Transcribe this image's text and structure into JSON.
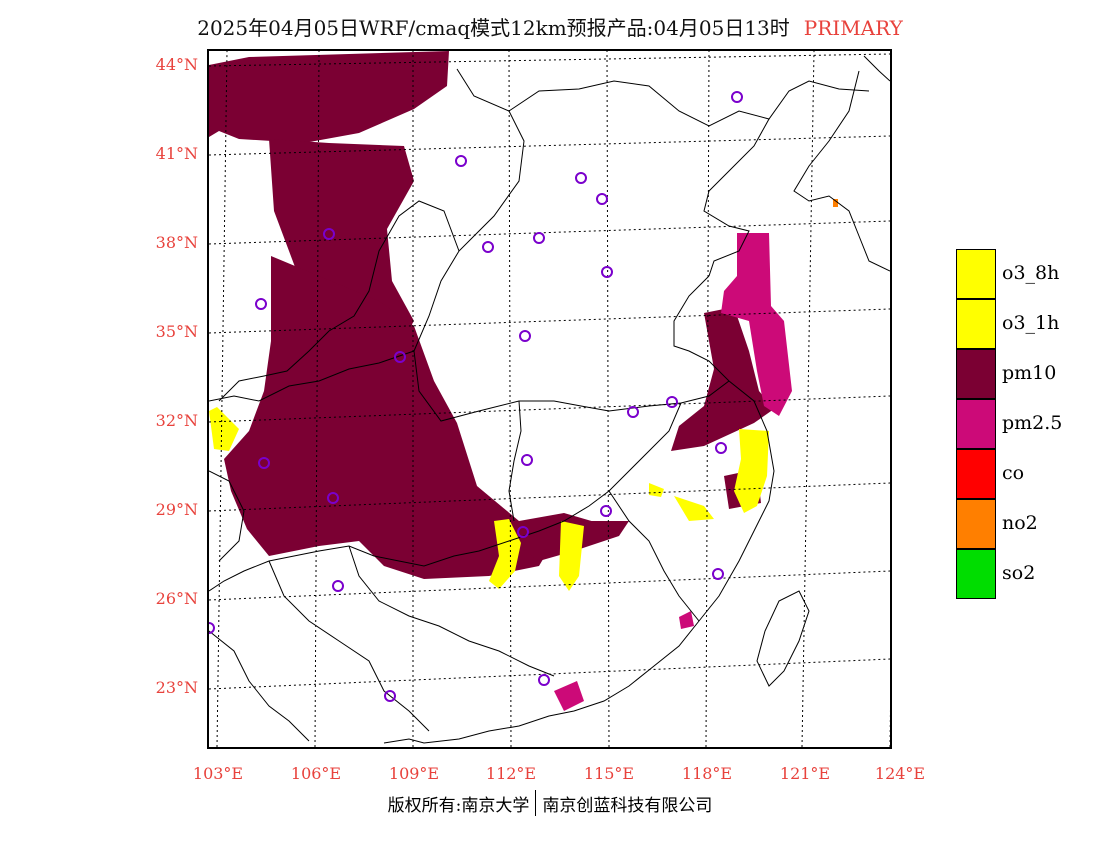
{
  "title": {
    "main": "2025年04月05日WRF/cmaq模式12km预报产品:04月05日13时",
    "tag": "PRIMARY",
    "tag_color": "#e8423c"
  },
  "lat_labels": [
    "44°N",
    "41°N",
    "38°N",
    "35°N",
    "32°N",
    "29°N",
    "26°N",
    "23°N"
  ],
  "lon_labels": [
    "103°E",
    "106°E",
    "109°E",
    "112°E",
    "115°E",
    "118°E",
    "121°E",
    "124°E"
  ],
  "legend": [
    {
      "label": "o3_8h",
      "color": "#ffff00"
    },
    {
      "label": "o3_1h",
      "color": "#ffff00"
    },
    {
      "label": "pm10",
      "color": "#7b0033"
    },
    {
      "label": "pm2.5",
      "color": "#cc0a78"
    },
    {
      "label": "co",
      "color": "#ff0000"
    },
    {
      "label": "no2",
      "color": "#ff7f00"
    },
    {
      "label": "so2",
      "color": "#00dd00"
    }
  ],
  "footer": {
    "left": "版权所有:南京大学",
    "right": "南京创蓝科技有限公司"
  }
}
